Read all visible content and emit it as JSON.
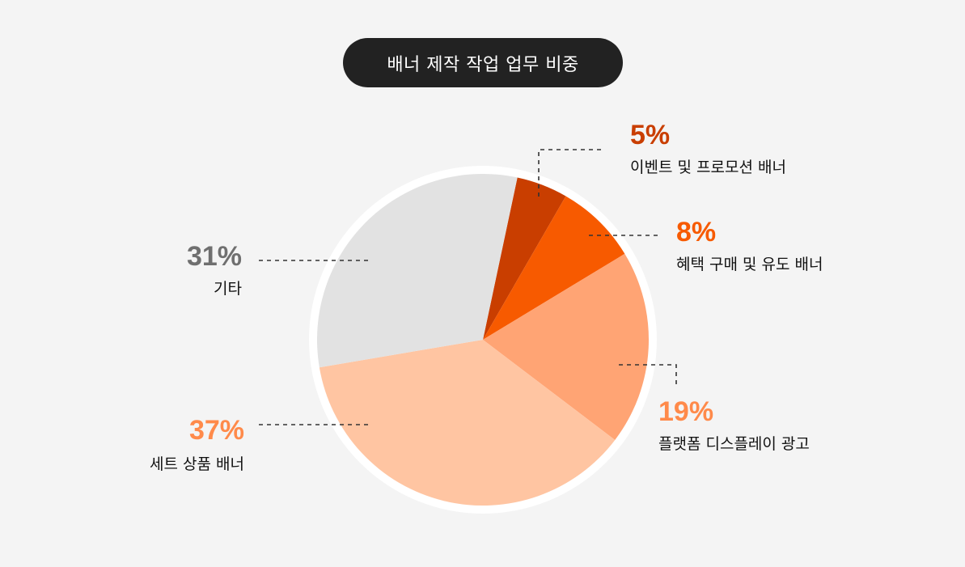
{
  "title": "배너 제작 작업 업무 비중",
  "colors": {
    "background": "#f4f4f4",
    "title_bg": "#222222",
    "ring": "#ffffff"
  },
  "slices": [
    {
      "label": "이벤트 및 프로모션 배너",
      "percent_text": "5%",
      "color": "#c93e00",
      "text_color": "#c93e00"
    },
    {
      "label": "혜택 구매 및 유도 배너",
      "percent_text": "8%",
      "color": "#f75a00",
      "text_color": "#f75a00"
    },
    {
      "label": "플랫폼 디스플레이 광고",
      "percent_text": "19%",
      "color": "#ffa474",
      "text_color": "#ff8a4a"
    },
    {
      "label": "세트 상품 배너",
      "percent_text": "37%",
      "color": "#ffc5a2",
      "text_color": "#ff8a4a"
    },
    {
      "label": "기타",
      "percent_text": "31%",
      "color": "#e2e2e2",
      "text_color": "#6f6f6f"
    }
  ],
  "chart_data": {
    "type": "pie",
    "title": "배너 제작 작업 업무 비중",
    "categories": [
      "이벤트 및 프로모션 배너",
      "혜택 구매 및 유도 배너",
      "플랫폼 디스플레이 광고",
      "세트 상품 배너",
      "기타"
    ],
    "values": [
      5,
      8,
      19,
      37,
      31
    ],
    "unit": "%",
    "colors": [
      "#c93e00",
      "#f75a00",
      "#ffa474",
      "#ffc5a2",
      "#e2e2e2"
    ],
    "start_angle_deg_clockwise_from_top": 12,
    "legend": "callout labels with dashed leader lines"
  }
}
